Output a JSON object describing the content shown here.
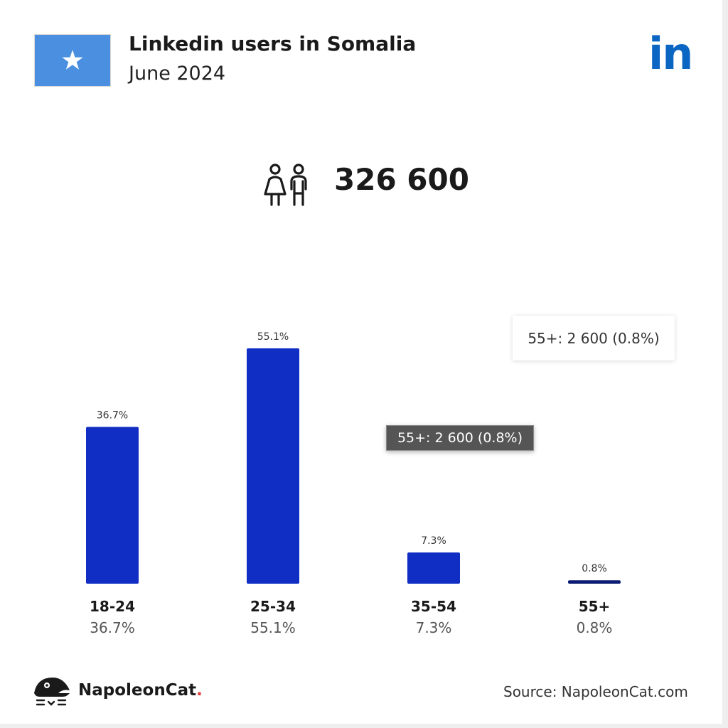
{
  "header": {
    "title": "Linkedin users in Somalia",
    "subtitle": "June 2024",
    "logo_text": "in",
    "flag": {
      "background": "#4a8fe0",
      "star": "#ffffff"
    }
  },
  "summary": {
    "total_users": "326 600",
    "icon": "users-icon"
  },
  "tooltips": {
    "light": "55+: 2 600 (0.8%)",
    "dark": "55+: 2 600 (0.8%)"
  },
  "chart_data": {
    "type": "bar",
    "categories": [
      "18-24",
      "25-34",
      "35-54",
      "55+"
    ],
    "values": [
      36.7,
      55.1,
      7.3,
      0.8
    ],
    "value_labels": [
      "36.7%",
      "55.1%",
      "7.3%",
      "0.8%"
    ],
    "ylim": [
      0,
      55.1
    ],
    "grid": false,
    "colors": [
      "#112ec4",
      "#112ec4",
      "#112ec4",
      "#0b1a72"
    ]
  },
  "footer": {
    "brand": "NapoleonCat",
    "brand_dot": ".",
    "source": "Source: NapoleonCat.com"
  }
}
